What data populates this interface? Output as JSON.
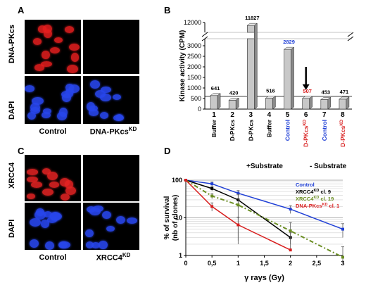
{
  "panel_letters": {
    "a": "A",
    "b": "B",
    "c": "C",
    "d": "D"
  },
  "panel_a": {
    "row_labels": [
      "DNA-PKcs",
      "DAPI"
    ],
    "col_labels": {
      "left": "Control",
      "right_base": "DNA-PKcs",
      "right_sup": "KD"
    }
  },
  "panel_c": {
    "row_labels": [
      "XRCC4",
      "DAPI"
    ],
    "col_labels": {
      "left": "Control",
      "right_base": "XRCC4",
      "right_sup": "KD"
    }
  },
  "chart_data": [
    {
      "type": "bar",
      "ylabel": "Kinase activity (CPM)",
      "y_ticks": [
        "0",
        "500",
        "1000",
        "1500",
        "2000",
        "2500",
        "3000",
        "12000"
      ],
      "y_axis_break": true,
      "categories": [
        "1",
        "2",
        "3",
        "4",
        "5",
        "6",
        "7",
        "8"
      ],
      "category_labels": [
        {
          "base": "Buffer",
          "sup": "",
          "color": "#000000"
        },
        {
          "base": "D-PKcs",
          "sup": "",
          "color": "#000000"
        },
        {
          "base": "D-PKcs",
          "sup": "",
          "color": "#000000"
        },
        {
          "base": "Buffer",
          "sup": "",
          "color": "#000000"
        },
        {
          "base": "Control",
          "sup": "",
          "color": "#1f3fd6"
        },
        {
          "base": "D-PKcs",
          "sup": "KD",
          "color": "#d81e1e"
        },
        {
          "base": "Control",
          "sup": "",
          "color": "#1f3fd6"
        },
        {
          "base": "D-PKcs",
          "sup": "KD",
          "color": "#d81e1e"
        }
      ],
      "values": [
        641,
        420,
        11827,
        516,
        2829,
        507,
        453,
        471
      ],
      "value_labels": [
        {
          "text": "641",
          "color": "#000000"
        },
        {
          "text": "420",
          "color": "#000000"
        },
        {
          "text": "11827",
          "color": "#000000"
        },
        {
          "text": "516",
          "color": "#000000"
        },
        {
          "text": "2829",
          "color": "#1f3fd6"
        },
        {
          "text": "507",
          "color": "#d81e1e"
        },
        {
          "text": "453",
          "color": "#000000"
        },
        {
          "text": "471",
          "color": "#000000"
        }
      ],
      "groups": [
        {
          "label": "+Substrate"
        },
        {
          "label": "- Substrate"
        }
      ],
      "highlighted_category": "6"
    },
    {
      "type": "line",
      "xlabel": "γ rays (Gy)",
      "ylabel": "% of survival (nb of clones)",
      "x_ticks": [
        "0",
        "0,5",
        "1",
        "1,5",
        "2",
        "2,5",
        "3"
      ],
      "y_ticks": [
        "1",
        "10",
        "100"
      ],
      "y_scale": "log",
      "xlim": [
        0,
        3
      ],
      "ylim": [
        1,
        100
      ],
      "series": [
        {
          "name": "Control",
          "name_sup": "",
          "name_suffix": "",
          "color": "#1f3fd6",
          "dashed": false,
          "x": [
            0,
            0.5,
            1,
            2,
            3
          ],
          "y": [
            100,
            80,
            45,
            17,
            5
          ],
          "err": [
            0,
            10,
            8,
            4,
            2
          ]
        },
        {
          "name": "XRCC4",
          "name_sup": "KD",
          "name_suffix": " cl. 9",
          "color": "#000000",
          "dashed": false,
          "x": [
            0,
            0.5,
            1,
            2
          ],
          "y": [
            100,
            60,
            30,
            3
          ],
          "err": [
            0,
            8,
            12,
            1
          ]
        },
        {
          "name": "XRCC4",
          "name_sup": "KD",
          "name_suffix": " cl. 19",
          "color": "#6b8e23",
          "dashed": true,
          "x": [
            0,
            0.5,
            1,
            2,
            3
          ],
          "y": [
            100,
            38,
            22,
            4.5,
            0.9
          ],
          "err": [
            0,
            6,
            20,
            3,
            0.8
          ]
        },
        {
          "name": "DNA-PKcs",
          "name_sup": "KD",
          "name_suffix": " cl. 1",
          "color": "#d81e1e",
          "dashed": false,
          "x": [
            0,
            0.5,
            1,
            2
          ],
          "y": [
            100,
            20,
            6.5,
            1.4
          ],
          "err": [
            0,
            5,
            4,
            0
          ]
        }
      ]
    }
  ]
}
